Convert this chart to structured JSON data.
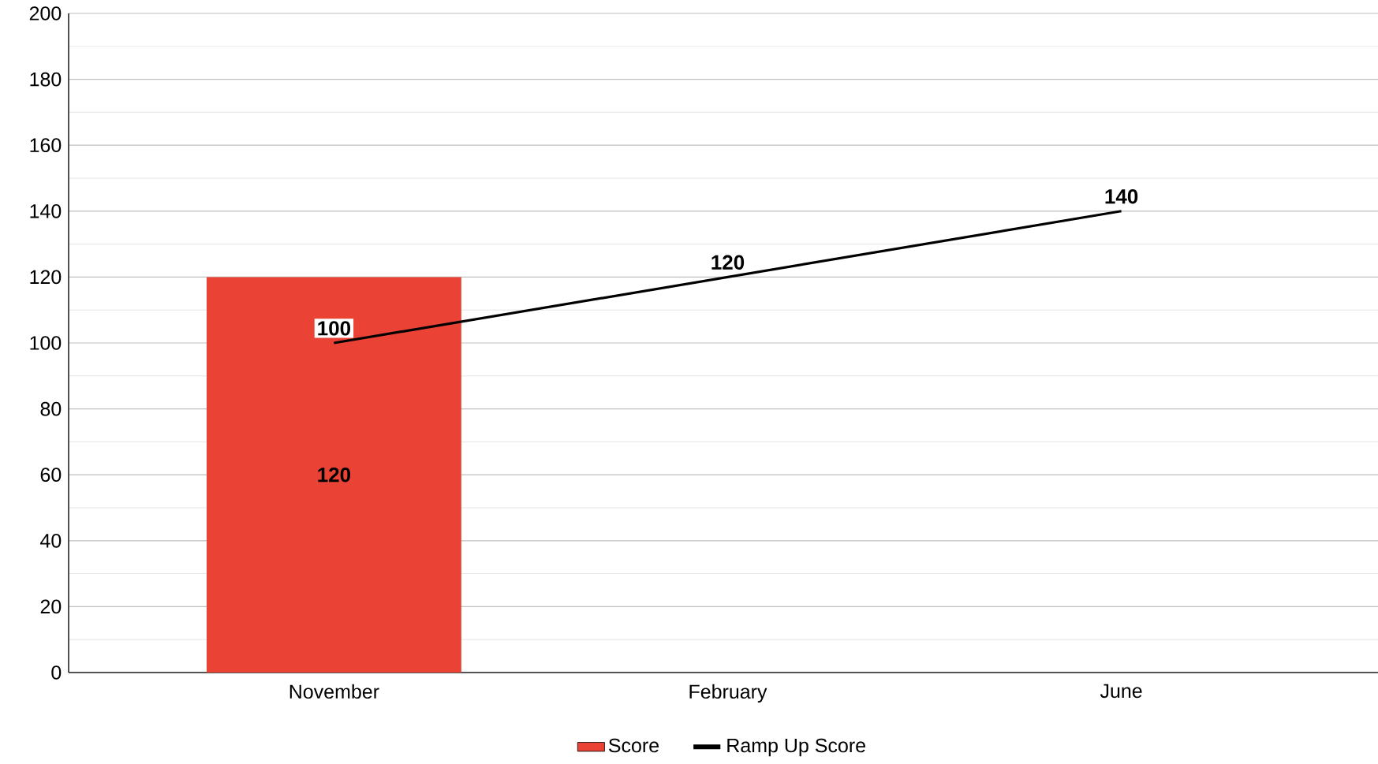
{
  "chart_data": {
    "type": "bar",
    "categories": [
      "November",
      "February",
      "June"
    ],
    "series": [
      {
        "name": "Score",
        "color": "#ea4335",
        "values": [
          120,
          null,
          null
        ]
      },
      {
        "name": "Ramp Up Score",
        "type": "line",
        "color": "#000000",
        "values": [
          100,
          120,
          140
        ]
      }
    ],
    "ylim": [
      0,
      200
    ],
    "yticks": [
      0,
      20,
      40,
      60,
      80,
      100,
      120,
      140,
      160,
      180,
      200
    ],
    "grid": "y",
    "legend": "bottom",
    "data_labels": true,
    "marker": "none",
    "line_style": "solid"
  }
}
